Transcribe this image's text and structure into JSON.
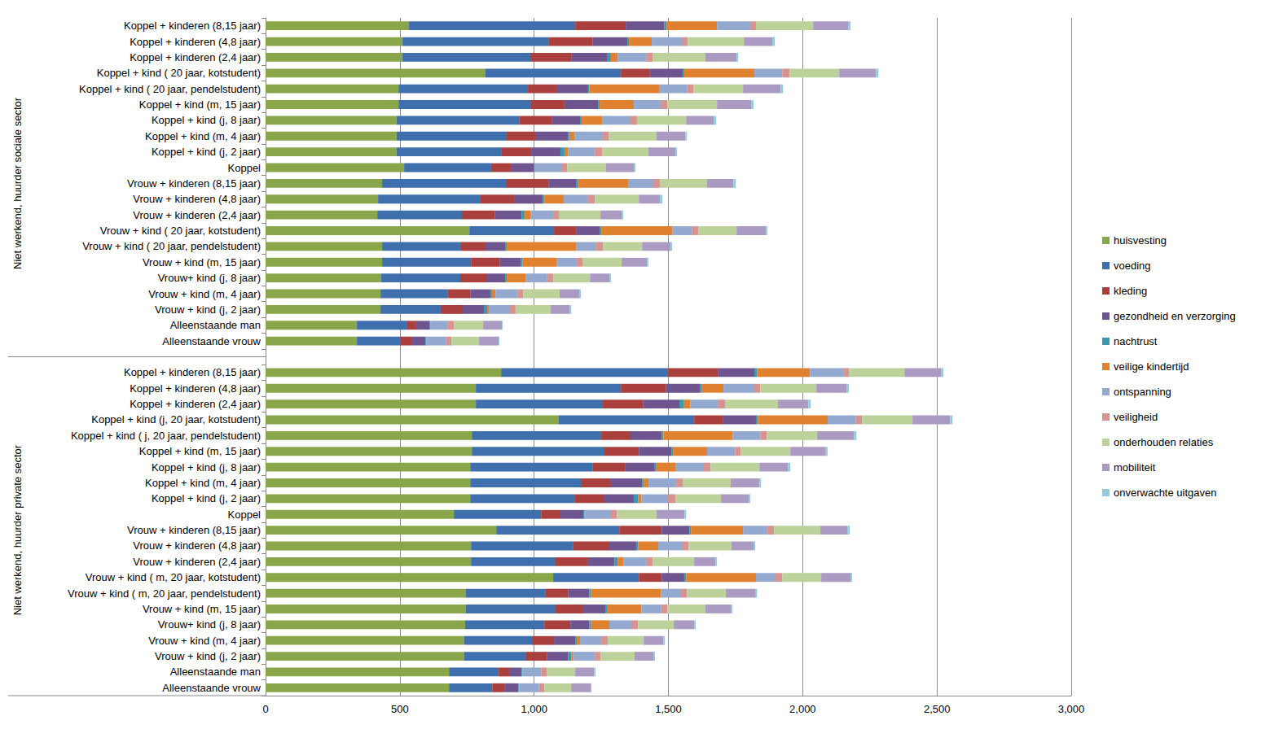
{
  "chart_data": {
    "type": "bar",
    "orientation": "horizontal",
    "stacked": true,
    "grid": true,
    "legend": "right",
    "group_labels": [
      "Niet werkend, huurder sociale sector",
      "Niet werkend, huurder private sector"
    ],
    "xlim": [
      0,
      3000
    ],
    "xticks": [
      0,
      500,
      1000,
      1500,
      2000,
      2500,
      3000
    ],
    "categories": [
      "Koppel + kinderen (8,15 jaar)",
      "Koppel + kinderen (4,8 jaar)",
      "Koppel + kinderen (2,4 jaar)",
      "Koppel + kind ( 20 jaar, kotstudent)",
      "Koppel + kind ( 20 jaar, pendelstudent)",
      "Koppel + kind (m, 15 jaar)",
      "Koppel + kind (j, 8 jaar)",
      "Koppel + kind (m, 4 jaar)",
      "Koppel + kind (j, 2 jaar)",
      "Koppel",
      "Vrouw + kinderen (8,15 jaar)",
      "Vrouw + kinderen (4,8 jaar)",
      "Vrouw + kinderen (2,4 jaar)",
      "Vrouw + kind ( 20 jaar, kotstudent)",
      "Vrouw + kind ( 20 jaar, pendelstudent)",
      "Vrouw + kind (m, 15 jaar)",
      "Vrouw+ kind (j, 8 jaar)",
      "Vrouw + kind (m, 4 jaar)",
      "Vrouw + kind (j, 2 jaar)",
      "Alleenstaande man",
      "Alleenstaande vrouw",
      null,
      "Koppel + kinderen (8,15 jaar)",
      "Koppel + kinderen (4,8 jaar)",
      "Koppel + kinderen (2,4 jaar)",
      "Koppel + kind (j, 20 jaar, kotstudent)",
      "Koppel + kind ( j, 20 jaar, pendelstudent)",
      "Koppel + kind (m, 15 jaar)",
      "Koppel + kind (j, 8 jaar)",
      "Koppel + kind (m, 4 jaar)",
      "Koppel + kind (j, 2 jaar)",
      "Koppel",
      "Vrouw + kinderen (8,15 jaar)",
      "Vrouw + kinderen (4,8 jaar)",
      "Vrouw + kinderen (2,4 jaar)",
      "Vrouw + kind ( m, 20 jaar, kotstudent)",
      "Vrouw + kind ( m, 20 jaar, pendelstudent)",
      "Vrouw + kind (m, 15 jaar)",
      "Vrouw+ kind (j, 8 jaar)",
      "Vrouw + kind (m, 4 jaar)",
      "Vrouw + kind (j, 2 jaar)",
      "Alleenstaande man",
      "Alleenstaande vrouw"
    ],
    "series": [
      {
        "name": "huisvesting",
        "color": "#8aa64a",
        "values": [
          534,
          510,
          510,
          819,
          495,
          495,
          488,
          488,
          488,
          516,
          434,
          419,
          416,
          759,
          434,
          434,
          431,
          428,
          428,
          340,
          340,
          null,
          877,
          783,
          783,
          1092,
          768,
          768,
          762,
          762,
          762,
          701,
          859,
          765,
          765,
          1071,
          746,
          746,
          743,
          740,
          740,
          683,
          683
        ]
      },
      {
        "name": "voeding",
        "color": "#3f6fad",
        "values": [
          619,
          543,
          476,
          504,
          482,
          491,
          456,
          410,
          389,
          324,
          461,
          379,
          315,
          315,
          294,
          331,
          294,
          249,
          224,
          185,
          161,
          null,
          622,
          540,
          473,
          504,
          482,
          491,
          455,
          412,
          388,
          325,
          458,
          379,
          312,
          319,
          295,
          334,
          295,
          252,
          228,
          185,
          161
        ]
      },
      {
        "name": "kleding",
        "color": "#aa403d",
        "values": [
          188,
          164,
          152,
          106,
          109,
          127,
          121,
          109,
          112,
          73,
          158,
          130,
          122,
          82,
          88,
          106,
          97,
          85,
          82,
          36,
          42,
          null,
          185,
          167,
          149,
          106,
          109,
          131,
          121,
          109,
          112,
          72,
          158,
          133,
          124,
          85,
          85,
          103,
          97,
          82,
          79,
          39,
          45
        ]
      },
      {
        "name": "gezondheid en verzorging",
        "color": "#6f5590",
        "values": [
          143,
          130,
          133,
          124,
          115,
          125,
          106,
          119,
          109,
          85,
          103,
          104,
          100,
          88,
          76,
          79,
          70,
          75,
          79,
          49,
          52,
          null,
          136,
          127,
          136,
          124,
          116,
          121,
          109,
          119,
          109,
          85,
          103,
          103,
          98,
          84,
          79,
          82,
          70,
          79,
          79,
          46,
          52
        ]
      },
      {
        "name": "nachtrust",
        "color": "#3e97b0",
        "values": [
          9,
          6,
          15,
          6,
          4,
          6,
          6,
          6,
          15,
          3,
          6,
          6,
          12,
          6,
          6,
          6,
          6,
          6,
          12,
          3,
          3,
          null,
          10,
          6,
          15,
          7,
          6,
          6,
          6,
          6,
          16,
          3,
          6,
          7,
          12,
          7,
          6,
          6,
          6,
          6,
          12,
          3,
          3
        ]
      },
      {
        "name": "veilige kindertijd",
        "color": "#df812f",
        "values": [
          188,
          85,
          25,
          261,
          260,
          127,
          76,
          18,
          13,
          0,
          188,
          72,
          21,
          264,
          258,
          127,
          70,
          13,
          6,
          0,
          0,
          null,
          197,
          82,
          25,
          260,
          258,
          127,
          73,
          18,
          12,
          0,
          194,
          75,
          21,
          260,
          261,
          128,
          69,
          12,
          6,
          0,
          0
        ]
      },
      {
        "name": "ontspanning",
        "color": "#93a9d0",
        "values": [
          124,
          112,
          106,
          104,
          104,
          100,
          106,
          103,
          100,
          100,
          94,
          91,
          85,
          73,
          73,
          73,
          79,
          82,
          79,
          64,
          73,
          null,
          124,
          115,
          103,
          104,
          103,
          104,
          106,
          103,
          100,
          100,
          91,
          88,
          85,
          73,
          72,
          73,
          82,
          79,
          82,
          70,
          73
        ]
      },
      {
        "name": "veiligheid",
        "color": "#d69392",
        "values": [
          21,
          22,
          24,
          27,
          24,
          25,
          24,
          24,
          27,
          22,
          24,
          25,
          21,
          24,
          27,
          24,
          24,
          21,
          21,
          24,
          21,
          null,
          21,
          22,
          27,
          24,
          24,
          21,
          25,
          24,
          27,
          22,
          24,
          25,
          24,
          25,
          25,
          24,
          25,
          24,
          21,
          21,
          21
        ]
      },
      {
        "name": "onderhouden relaties",
        "color": "#bcd29a",
        "values": [
          213,
          209,
          197,
          185,
          185,
          185,
          183,
          179,
          173,
          145,
          176,
          164,
          155,
          143,
          146,
          146,
          137,
          136,
          131,
          109,
          103,
          null,
          207,
          209,
          197,
          188,
          188,
          185,
          182,
          179,
          170,
          148,
          173,
          160,
          155,
          145,
          145,
          142,
          133,
          134,
          127,
          106,
          100
        ]
      },
      {
        "name": "mobiliteit",
        "color": "#ab9bc3",
        "values": [
          130,
          106,
          116,
          137,
          140,
          127,
          103,
          107,
          100,
          103,
          98,
          78,
          79,
          109,
          106,
          94,
          72,
          73,
          70,
          70,
          73,
          null,
          136,
          112,
          113,
          140,
          137,
          130,
          106,
          107,
          103,
          104,
          100,
          82,
          79,
          109,
          109,
          94,
          76,
          73,
          70,
          70,
          73
        ]
      },
      {
        "name": "onverwachte uitgaven",
        "color": "#93cddd",
        "values": [
          9,
          9,
          6,
          9,
          9,
          9,
          9,
          6,
          6,
          6,
          9,
          10,
          6,
          6,
          6,
          6,
          6,
          6,
          6,
          3,
          3,
          null,
          9,
          9,
          9,
          9,
          9,
          9,
          9,
          6,
          6,
          6,
          9,
          6,
          6,
          6,
          7,
          6,
          6,
          6,
          6,
          6,
          3
        ]
      }
    ]
  }
}
